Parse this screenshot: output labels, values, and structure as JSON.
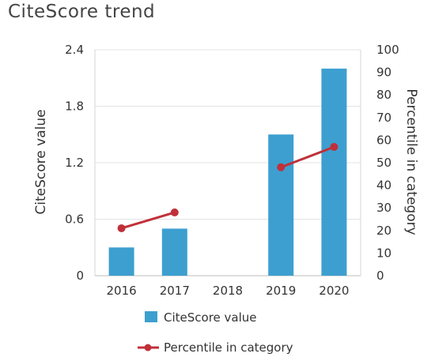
{
  "chart_data": {
    "type": "bar",
    "title": "CiteScore trend",
    "categories": [
      "2016",
      "2017",
      "2018",
      "2019",
      "2020"
    ],
    "series": [
      {
        "name": "CiteScore value",
        "type": "bar",
        "axis": "left",
        "color": "#3d9fcf",
        "values": [
          0.3,
          0.5,
          0,
          1.5,
          2.2
        ]
      },
      {
        "name": "Percentile in category",
        "type": "line",
        "axis": "right",
        "color": "#c0303a",
        "values": [
          21,
          28,
          null,
          48,
          57
        ],
        "line_segments": [
          [
            "2016",
            "2017"
          ],
          [
            "2019",
            "2020"
          ]
        ]
      }
    ],
    "ylabel": "CiteScore value",
    "ylim": [
      0,
      2.4
    ],
    "yticks": [
      "0",
      "0.6",
      "1.2",
      "1.8",
      "2.4"
    ],
    "y2label": "Percentile in category",
    "y2lim": [
      0,
      100
    ],
    "y2ticks": [
      "0",
      "10",
      "20",
      "30",
      "40",
      "50",
      "60",
      "70",
      "80",
      "90",
      "100"
    ],
    "grid": true,
    "legend_position": "bottom"
  }
}
